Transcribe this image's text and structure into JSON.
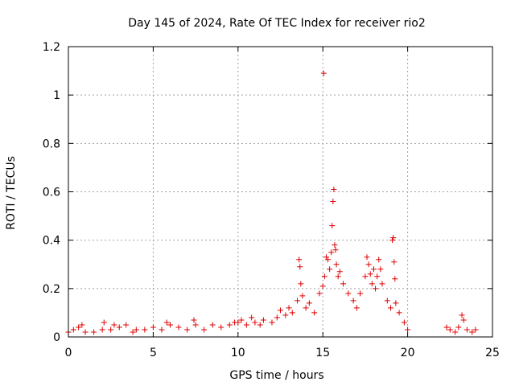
{
  "chart_data": {
    "type": "scatter",
    "title": "Day 145 of 2024, Rate Of TEC Index for receiver rio2",
    "xlabel": "GPS time / hours",
    "ylabel": "ROTI / TECUs",
    "xlim": [
      0,
      25
    ],
    "ylim": [
      0,
      1.2
    ],
    "xticks": [
      "0",
      "5",
      "10",
      "15",
      "20",
      "25"
    ],
    "xtick_values": [
      0,
      5,
      10,
      15,
      20,
      25
    ],
    "yticks": [
      "0",
      "0.2",
      "0.4",
      "0.6",
      "0.8",
      "1",
      "1.2"
    ],
    "ytick_values": [
      0,
      0.2,
      0.4,
      0.6,
      0.8,
      1.0,
      1.2
    ],
    "grid": true,
    "marker": "+",
    "marker_color": "#e00000",
    "series": [
      {
        "name": "ROTI",
        "points": [
          [
            0.0,
            0.02
          ],
          [
            0.3,
            0.03
          ],
          [
            0.6,
            0.04
          ],
          [
            0.8,
            0.05
          ],
          [
            1.0,
            0.02
          ],
          [
            1.5,
            0.02
          ],
          [
            2.0,
            0.03
          ],
          [
            2.1,
            0.06
          ],
          [
            2.5,
            0.03
          ],
          [
            2.7,
            0.05
          ],
          [
            3.0,
            0.04
          ],
          [
            3.4,
            0.05
          ],
          [
            3.8,
            0.02
          ],
          [
            4.0,
            0.03
          ],
          [
            4.5,
            0.03
          ],
          [
            5.0,
            0.04
          ],
          [
            5.5,
            0.03
          ],
          [
            5.8,
            0.06
          ],
          [
            6.0,
            0.05
          ],
          [
            6.5,
            0.04
          ],
          [
            7.0,
            0.03
          ],
          [
            7.4,
            0.07
          ],
          [
            7.5,
            0.05
          ],
          [
            8.0,
            0.03
          ],
          [
            8.5,
            0.05
          ],
          [
            9.0,
            0.04
          ],
          [
            9.5,
            0.05
          ],
          [
            9.8,
            0.06
          ],
          [
            10.0,
            0.06
          ],
          [
            10.2,
            0.07
          ],
          [
            10.5,
            0.05
          ],
          [
            10.8,
            0.08
          ],
          [
            11.0,
            0.06
          ],
          [
            11.3,
            0.05
          ],
          [
            11.5,
            0.07
          ],
          [
            12.0,
            0.06
          ],
          [
            12.3,
            0.08
          ],
          [
            12.5,
            0.11
          ],
          [
            12.8,
            0.09
          ],
          [
            13.0,
            0.12
          ],
          [
            13.2,
            0.1
          ],
          [
            13.5,
            0.15
          ],
          [
            13.6,
            0.32
          ],
          [
            13.65,
            0.29
          ],
          [
            13.7,
            0.22
          ],
          [
            13.8,
            0.17
          ],
          [
            14.0,
            0.12
          ],
          [
            14.2,
            0.14
          ],
          [
            14.5,
            0.1
          ],
          [
            14.8,
            0.18
          ],
          [
            15.0,
            0.21
          ],
          [
            15.05,
            1.09
          ],
          [
            15.1,
            0.25
          ],
          [
            15.2,
            0.33
          ],
          [
            15.3,
            0.32
          ],
          [
            15.4,
            0.28
          ],
          [
            15.5,
            0.35
          ],
          [
            15.55,
            0.46
          ],
          [
            15.6,
            0.56
          ],
          [
            15.65,
            0.61
          ],
          [
            15.7,
            0.38
          ],
          [
            15.75,
            0.36
          ],
          [
            15.8,
            0.3
          ],
          [
            15.9,
            0.25
          ],
          [
            16.0,
            0.27
          ],
          [
            16.2,
            0.22
          ],
          [
            16.5,
            0.18
          ],
          [
            16.8,
            0.15
          ],
          [
            17.0,
            0.12
          ],
          [
            17.2,
            0.18
          ],
          [
            17.5,
            0.25
          ],
          [
            17.6,
            0.33
          ],
          [
            17.7,
            0.3
          ],
          [
            17.8,
            0.26
          ],
          [
            17.9,
            0.22
          ],
          [
            18.0,
            0.28
          ],
          [
            18.1,
            0.2
          ],
          [
            18.2,
            0.25
          ],
          [
            18.3,
            0.32
          ],
          [
            18.4,
            0.28
          ],
          [
            18.5,
            0.22
          ],
          [
            18.8,
            0.15
          ],
          [
            19.0,
            0.12
          ],
          [
            19.1,
            0.4
          ],
          [
            19.15,
            0.41
          ],
          [
            19.2,
            0.31
          ],
          [
            19.25,
            0.24
          ],
          [
            19.3,
            0.14
          ],
          [
            19.5,
            0.1
          ],
          [
            19.8,
            0.06
          ],
          [
            20.0,
            0.03
          ],
          [
            22.3,
            0.04
          ],
          [
            22.5,
            0.03
          ],
          [
            22.8,
            0.02
          ],
          [
            23.0,
            0.04
          ],
          [
            23.2,
            0.09
          ],
          [
            23.3,
            0.07
          ],
          [
            23.5,
            0.03
          ],
          [
            23.8,
            0.02
          ],
          [
            24.0,
            0.03
          ]
        ]
      }
    ]
  }
}
